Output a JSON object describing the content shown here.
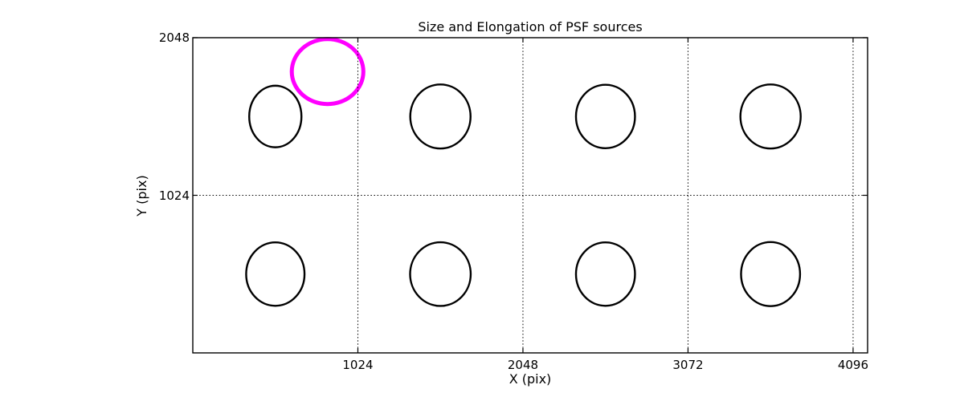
{
  "chart_data": {
    "type": "scatter",
    "title": "Size and Elongation of PSF sources",
    "xlabel": "X (pix)",
    "ylabel": "Y (pix)",
    "xlim": [
      0,
      4186
    ],
    "ylim": [
      0,
      2048
    ],
    "xticks": {
      "values": [
        1024,
        2048,
        3072,
        4096
      ],
      "labels": [
        "1024",
        "2048",
        "3072",
        "4096"
      ]
    },
    "yticks": {
      "values": [
        1024,
        2048
      ],
      "labels": [
        "1024",
        "2048"
      ]
    },
    "grid": {
      "visible": true,
      "style": "dotted",
      "color": "#000000"
    },
    "legend": "none",
    "ellipse_color": "#000000",
    "highlight_color": "#ff00ff",
    "sources": [
      {
        "x": 512,
        "y": 1536,
        "a": 162,
        "b": 200,
        "highlighted": false
      },
      {
        "x": 1536,
        "y": 1536,
        "a": 187,
        "b": 208,
        "highlighted": false
      },
      {
        "x": 2560,
        "y": 1536,
        "a": 183,
        "b": 206,
        "highlighted": false
      },
      {
        "x": 3584,
        "y": 1536,
        "a": 187,
        "b": 208,
        "highlighted": false
      },
      {
        "x": 512,
        "y": 512,
        "a": 181,
        "b": 206,
        "highlighted": false
      },
      {
        "x": 1536,
        "y": 512,
        "a": 188,
        "b": 207,
        "highlighted": false
      },
      {
        "x": 2560,
        "y": 512,
        "a": 183,
        "b": 206,
        "highlighted": false
      },
      {
        "x": 3584,
        "y": 512,
        "a": 183,
        "b": 208,
        "highlighted": false
      },
      {
        "x": 836,
        "y": 1828,
        "a": 222,
        "b": 211,
        "highlighted": true
      }
    ]
  }
}
